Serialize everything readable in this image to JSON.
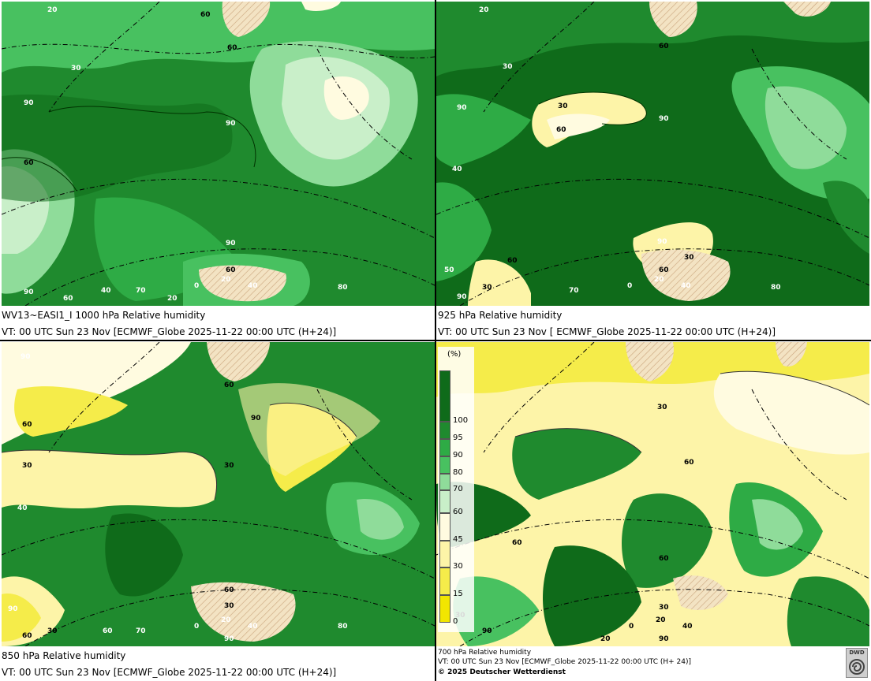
{
  "colors": {
    "very_dark_green": "#0f6b1a",
    "dark_green": "#1f8a2e",
    "medium_green": "#2eab45",
    "green": "#48c160",
    "light_green": "#8fdc9a",
    "pale_green": "#c9efc9",
    "cream": "#fffbe0",
    "pale_yellow": "#fdf4a8",
    "yellow": "#f5ec4a",
    "bright_yellow": "#f2e600",
    "land_hatch": "#e8cfa8"
  },
  "panels": [
    {
      "id": "1000hpa",
      "caption_line1": "WV13~EASI1_I 1000 hPa Relative humidity",
      "caption_line2": "VT: 00 UTC Sun  23 Nov [ECMWF_Globe 2025-11-22 00:00 UTC  (H+24)]",
      "base_color": "dark_green",
      "contour_labels": [
        "20",
        "60",
        "60",
        "30",
        "90",
        "90",
        "60",
        "90",
        "60",
        "0",
        "20",
        "40",
        "70",
        "20",
        "80",
        "40",
        "60",
        "90"
      ]
    },
    {
      "id": "925hpa",
      "caption_line1": "925 hPa Relative humidity",
      "caption_line2": "VT: 00 UTC Sun  23 Nov [ ECMWF_Globe 2025-11-22 00:00 UTC (H+24)]",
      "base_color": "very_dark_green",
      "contour_labels": [
        "20",
        "60",
        "30",
        "90",
        "30",
        "60",
        "90",
        "40",
        "90",
        "30",
        "60",
        "60",
        "0",
        "20",
        "40",
        "80",
        "70",
        "30",
        "50",
        "90"
      ]
    },
    {
      "id": "850hpa",
      "caption_line1": "850 hPa  Relative humidity",
      "caption_line2": "VT: 00 UTC Sun  23 Nov [ECMWF_Globe 2025-11-22 00:00 UTC  (H+24)]",
      "base_color": "dark_green",
      "contour_labels": [
        "90",
        "60",
        "90",
        "60",
        "30",
        "30",
        "40",
        "60",
        "30",
        "20",
        "0",
        "40",
        "80",
        "70",
        "60",
        "30",
        "90",
        "90",
        "60"
      ]
    },
    {
      "id": "700hpa",
      "caption_line1": "700 hPa Relative humidity",
      "caption_line2": "VT: 00 UTC Sun  23 Nov [ECMWF_Globe 2025-11-22 00:00 UTC  (H+ 24)]",
      "caption_line3": "© 2025 Deutscher Wetterdienst",
      "base_color": "pale_yellow",
      "contour_labels": [
        "30",
        "60",
        "60",
        "30",
        "60",
        "30",
        "90",
        "20",
        "0",
        "20",
        "40",
        "90"
      ]
    }
  ],
  "legend": {
    "unit": "(%)",
    "classes": [
      {
        "color": "very_dark_green",
        "upper": 100
      },
      {
        "color": "dark_green",
        "upper": 95
      },
      {
        "color": "medium_green",
        "upper": 90
      },
      {
        "color": "green",
        "upper": 80
      },
      {
        "color": "light_green",
        "upper": 70
      },
      {
        "color": "pale_green",
        "upper": 60
      },
      {
        "color": "cream",
        "upper": 45
      },
      {
        "color": "pale_yellow",
        "upper": 30
      },
      {
        "color": "yellow",
        "upper": 15
      },
      {
        "color": "bright_yellow",
        "upper": 0
      }
    ],
    "tick_labels": [
      "100",
      "95",
      "90",
      "80",
      "70",
      "60",
      "45",
      "30",
      "15",
      "0"
    ]
  },
  "logo": {
    "text": "DWD",
    "icon": "dwd-swirl-icon"
  }
}
